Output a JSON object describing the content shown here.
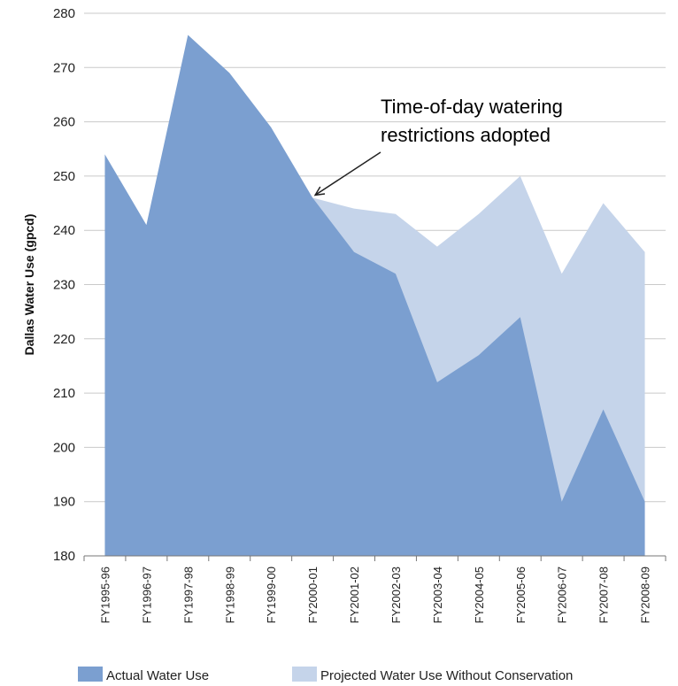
{
  "chart_data": {
    "type": "area",
    "ylabel": "Dallas Water Use (gpcd)",
    "ylim": [
      180,
      280
    ],
    "yticks": [
      180,
      190,
      200,
      210,
      220,
      230,
      240,
      250,
      260,
      270,
      280
    ],
    "grid": "horizontal",
    "legend_position": "bottom",
    "categories": [
      "FY1995-96",
      "FY1996-97",
      "FY1997-98",
      "FY1998-99",
      "FY1999-00",
      "FY2000-01",
      "FY2001-02",
      "FY2002-03",
      "FY2003-04",
      "FY2004-05",
      "FY2005-06",
      "FY2006-07",
      "FY2007-08",
      "FY2008-09"
    ],
    "series": [
      {
        "name": "Actual Water Use",
        "color": "#7b9fd0",
        "x": [
          0,
          1,
          2,
          3,
          4,
          5,
          6,
          7,
          8,
          9,
          10,
          11,
          12,
          13
        ],
        "values": [
          254,
          241,
          276,
          269,
          259,
          246,
          236,
          232,
          212,
          217,
          224,
          190,
          207,
          190
        ]
      },
      {
        "name": "Projected Water Use Without Conservation",
        "color": "#c5d4ea",
        "x": [
          5,
          6,
          7,
          8,
          9,
          10,
          11,
          12,
          13
        ],
        "values": [
          246,
          244,
          243,
          237,
          243,
          250,
          232,
          245,
          236
        ]
      }
    ],
    "annotation": {
      "lines": [
        "Time-of-day watering",
        "restrictions adopted"
      ],
      "arrow_target": {
        "x": 5,
        "y": 246
      }
    }
  }
}
